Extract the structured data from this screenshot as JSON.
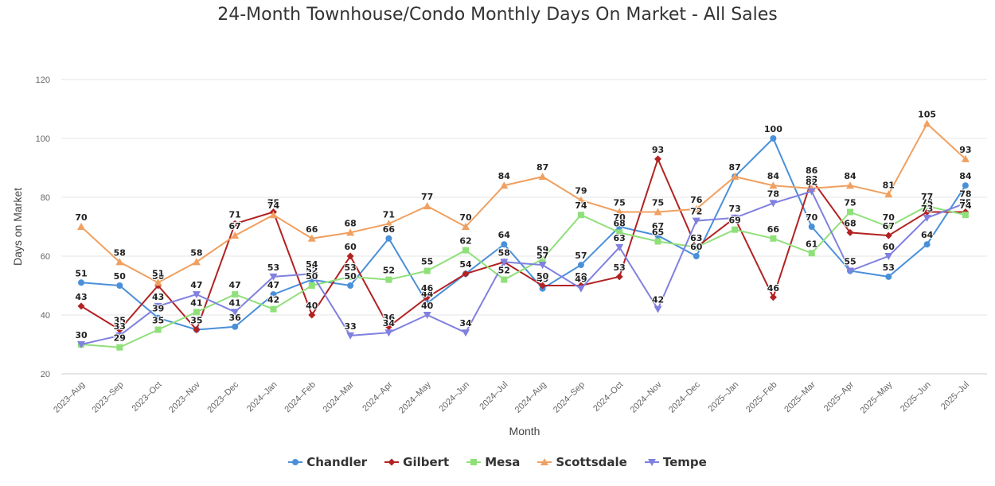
{
  "chart_data": {
    "type": "line",
    "title": "24-Month Townhouse/Condo Monthly Days On Market - All Sales",
    "xlabel": "Month",
    "ylabel": "Days on Market",
    "ylim": [
      20,
      120
    ],
    "yticks": [
      20,
      40,
      60,
      80,
      100,
      120
    ],
    "grid": true,
    "legend_position": "bottom-center",
    "categories": [
      "2023–Aug",
      "2023–Sep",
      "2023–Oct",
      "2023–Nov",
      "2023–Dec",
      "2024–Jan",
      "2024–Feb",
      "2024–Mar",
      "2024–Apr",
      "2024–May",
      "2024–Jun",
      "2024–Jul",
      "2024–Aug",
      "2024–Sep",
      "2024–Oct",
      "2024–Nov",
      "2024–Dec",
      "2025–Jan",
      "2025–Feb",
      "2025–Mar",
      "2025–Apr",
      "2025–May",
      "2025–Jun",
      "2025–Jul"
    ],
    "series": [
      {
        "name": "Chandler",
        "color": "#4a90d9",
        "marker": "circle",
        "values": [
          51,
          50,
          39,
          35,
          36,
          47,
          52,
          50,
          66,
          44,
          54,
          64,
          49,
          57,
          70,
          67,
          60,
          87,
          100,
          70,
          55,
          53,
          64,
          84
        ]
      },
      {
        "name": "Gilbert",
        "color": "#b22222",
        "marker": "diamond",
        "values": [
          43,
          35,
          50,
          35,
          71,
          75,
          40,
          60,
          36,
          46,
          54,
          58,
          50,
          50,
          53,
          93,
          63,
          73,
          46,
          86,
          68,
          67,
          75,
          75
        ]
      },
      {
        "name": "Mesa",
        "color": "#90e07a",
        "marker": "square",
        "values": [
          30,
          29,
          35,
          41,
          47,
          42,
          50,
          53,
          52,
          55,
          62,
          52,
          59,
          74,
          68,
          65,
          63,
          69,
          66,
          61,
          75,
          70,
          77,
          74
        ]
      },
      {
        "name": "Scottsdale",
        "color": "#f0a060",
        "marker": "triangle-up",
        "values": [
          70,
          58,
          51,
          58,
          67,
          74,
          66,
          68,
          71,
          77,
          70,
          84,
          87,
          79,
          75,
          75,
          76,
          87,
          84,
          83,
          84,
          81,
          105,
          93
        ]
      },
      {
        "name": "Tempe",
        "color": "#8080e0",
        "marker": "triangle-down",
        "values": [
          30,
          33,
          43,
          47,
          41,
          53,
          54,
          33,
          34,
          40,
          34,
          58,
          57,
          49,
          63,
          42,
          72,
          73,
          78,
          82,
          55,
          60,
          73,
          78
        ]
      }
    ]
  }
}
